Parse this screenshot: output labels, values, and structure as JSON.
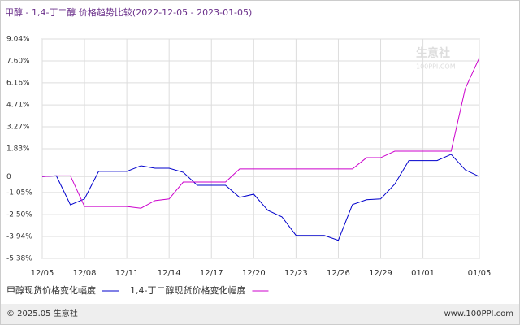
{
  "chart_data": {
    "type": "line",
    "title": "甲醇 - 1,4-丁二醇 价格趋势比较(2022-12-05 - 2023-01-05)",
    "categories": [
      "12/05",
      null,
      null,
      "12/08",
      null,
      null,
      "12/11",
      null,
      null,
      "12/14",
      null,
      null,
      "12/17",
      null,
      null,
      "12/20",
      null,
      null,
      "12/23",
      null,
      null,
      "12/26",
      null,
      null,
      "12/29",
      null,
      null,
      "01/01",
      null,
      null,
      null,
      "01/05"
    ],
    "series": [
      {
        "name": "甲醇现货价格变化幅度",
        "color": "#0000cc",
        "values": [
          0,
          0.05,
          -1.86,
          -1.47,
          0.34,
          0.34,
          0.34,
          0.71,
          0.55,
          0.55,
          0.28,
          -0.57,
          -0.57,
          -0.57,
          -1.37,
          -1.16,
          -2.22,
          -2.65,
          -3.87,
          -3.87,
          -3.87,
          -4.19,
          -1.84,
          -1.52,
          -1.47,
          -0.5,
          1.05,
          1.05,
          1.05,
          1.46,
          0.44,
          0
        ]
      },
      {
        "name": "1,4-丁二醇现货价格变化幅度",
        "color": "#cc00cc",
        "values": [
          0,
          0.05,
          0.05,
          -1.97,
          -1.97,
          -1.97,
          -1.97,
          -2.08,
          -1.58,
          -1.47,
          -0.36,
          -0.36,
          -0.36,
          -0.36,
          0.5,
          0.5,
          0.5,
          0.5,
          0.5,
          0.5,
          0.5,
          0.5,
          0.5,
          1.24,
          1.24,
          1.67,
          1.67,
          1.67,
          1.67,
          1.67,
          5.78,
          7.8
        ]
      }
    ],
    "ylim": [
      -5.38,
      9.04
    ],
    "yticks": [
      {
        "value": 9.04,
        "label": "9.04%"
      },
      {
        "value": 7.6,
        "label": "7.60%"
      },
      {
        "value": 6.16,
        "label": "6.16%"
      },
      {
        "value": 4.71,
        "label": "4.71%"
      },
      {
        "value": 3.27,
        "label": "3.27%"
      },
      {
        "value": 1.83,
        "label": "1.83%"
      },
      0,
      {
        "value": -1.05,
        "label": "-1.05%"
      },
      {
        "value": -2.5,
        "label": "-2.50%"
      },
      {
        "value": -3.94,
        "label": "-3.94%"
      },
      {
        "value": -5.38,
        "label": "-5.38%"
      }
    ],
    "grid": true
  },
  "watermark": {
    "name": "生意社",
    "site": "100PPI.COM"
  },
  "footer": {
    "copyright": "© 2025.05 生意社",
    "site": "www.100PPI.com"
  }
}
